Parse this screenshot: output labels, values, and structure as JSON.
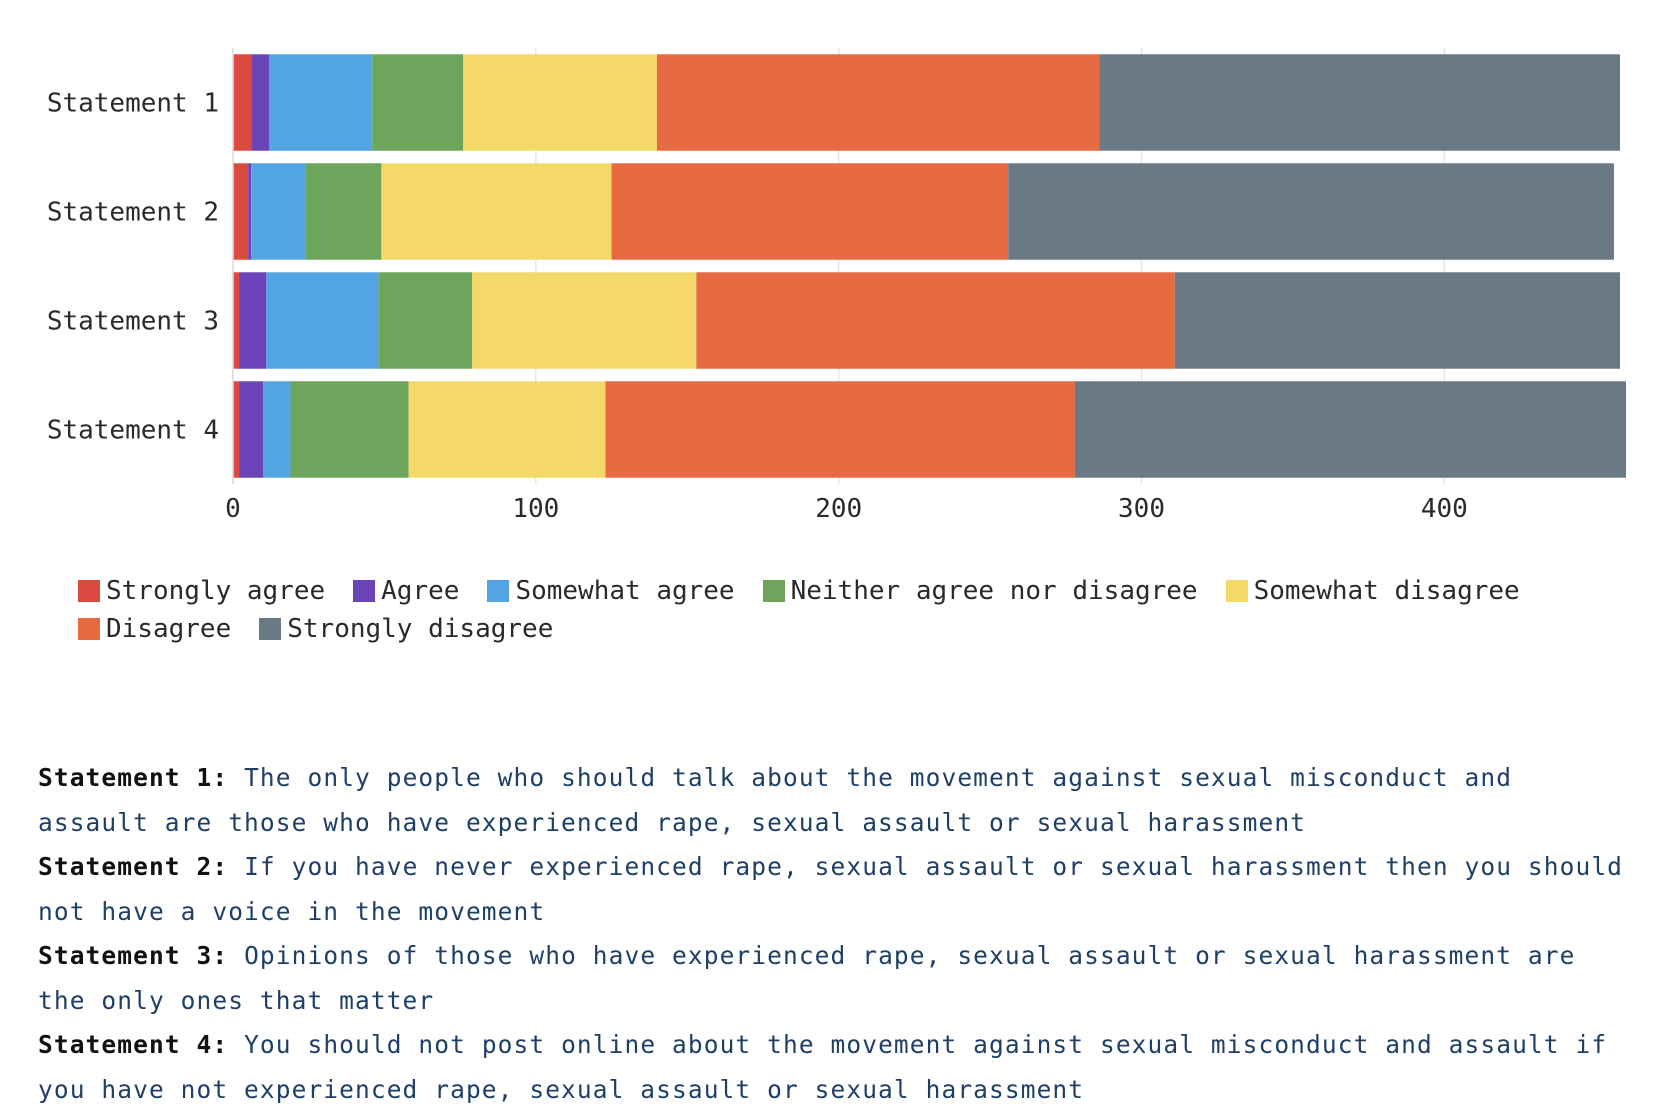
{
  "colors": {
    "Strongly agree": "#db4a3f",
    "Agree": "#6a44b8",
    "Somewhat agree": "#52a4e2",
    "Neither agree nor disagree": "#6da55c",
    "Somewhat disagree": "#f5d968",
    "Disagree": "#e66b43",
    "Strongly disagree": "#697a85"
  },
  "chart_data": {
    "type": "bar",
    "orientation": "horizontal",
    "stacked": true,
    "categories": [
      "Statement 1",
      "Statement 2",
      "Statement 3",
      "Statement 4"
    ],
    "series": [
      {
        "name": "Strongly agree",
        "values": [
          6,
          5,
          2,
          2
        ]
      },
      {
        "name": "Agree",
        "values": [
          6,
          1,
          9,
          8
        ]
      },
      {
        "name": "Somewhat agree",
        "values": [
          34,
          18,
          37,
          9
        ]
      },
      {
        "name": "Neither agree nor disagree",
        "values": [
          30,
          25,
          31,
          39
        ]
      },
      {
        "name": "Somewhat disagree",
        "values": [
          64,
          76,
          74,
          65
        ]
      },
      {
        "name": "Disagree",
        "values": [
          146,
          131,
          158,
          155
        ]
      },
      {
        "name": "Strongly disagree",
        "values": [
          172,
          200,
          147,
          182
        ]
      }
    ],
    "xticks": [
      0,
      100,
      200,
      300,
      400
    ],
    "xlim": [
      0,
      458
    ],
    "grid": true,
    "legend_position": "bottom",
    "title": "",
    "xlabel": "",
    "ylabel": ""
  },
  "statements": [
    {
      "label": "Statement 1:",
      "text": "The only people who should talk about the movement against sexual misconduct and assault are those who have experienced rape, sexual assault or sexual harassment"
    },
    {
      "label": "Statement 2:",
      "text": "If you have never experienced rape, sexual assault or sexual harassment then you should not have a voice in the movement"
    },
    {
      "label": "Statement 3:",
      "text": "Opinions of those who have experienced rape, sexual assault or sexual harassment are the only ones that matter"
    },
    {
      "label": "Statement 4:",
      "text": "You should not post online about the movement against sexual misconduct and assault if you have not experienced rape, sexual assault or sexual harassment"
    }
  ]
}
